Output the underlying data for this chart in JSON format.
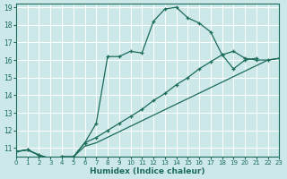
{
  "bg_color": "#cde8e8",
  "grid_color": "#ffffff",
  "line_color": "#1a6b5a",
  "xlabel": "Humidex (Indice chaleur)",
  "xlim": [
    0,
    23
  ],
  "ylim": [
    10.5,
    19.2
  ],
  "xtick_labels": [
    "0",
    "1",
    "2",
    "3",
    "4",
    "5",
    "6",
    "7",
    "8",
    "9",
    "10",
    "11",
    "12",
    "13",
    "14",
    "15",
    "16",
    "17",
    "18",
    "19",
    "20",
    "21",
    "22",
    "23"
  ],
  "ytick_labels": [
    "11",
    "12",
    "13",
    "14",
    "15",
    "16",
    "17",
    "18",
    "19"
  ],
  "ytick_vals": [
    11,
    12,
    13,
    14,
    15,
    16,
    17,
    18,
    19
  ],
  "line1_x": [
    0,
    1,
    2,
    3,
    4,
    5,
    6,
    7,
    8,
    9,
    10,
    11,
    12,
    13,
    14,
    15,
    16,
    17,
    18,
    19,
    20,
    21
  ],
  "line1_y": [
    10.8,
    10.9,
    10.6,
    10.4,
    10.5,
    10.5,
    11.3,
    12.4,
    16.2,
    16.2,
    16.5,
    16.4,
    18.2,
    18.9,
    19.0,
    18.4,
    18.1,
    17.6,
    16.3,
    15.5,
    16.0,
    16.1
  ],
  "line2_x": [
    0,
    1,
    2,
    3,
    4,
    5,
    6,
    7,
    8,
    9,
    10,
    11,
    12,
    13,
    14,
    15,
    16,
    17,
    18,
    19,
    20,
    21,
    22,
    23
  ],
  "line2_y": [
    10.8,
    10.9,
    10.6,
    10.4,
    10.5,
    10.5,
    11.3,
    11.6,
    12.0,
    12.4,
    12.8,
    13.2,
    13.7,
    14.1,
    14.6,
    15.0,
    15.5,
    15.9,
    16.3,
    16.5,
    16.1,
    16.0,
    16.0,
    16.1
  ],
  "line3_x": [
    0,
    1,
    2,
    3,
    4,
    5,
    6,
    7,
    22,
    23
  ],
  "line3_y": [
    10.8,
    10.9,
    10.6,
    10.4,
    10.5,
    10.5,
    11.1,
    11.3,
    16.0,
    16.1
  ]
}
